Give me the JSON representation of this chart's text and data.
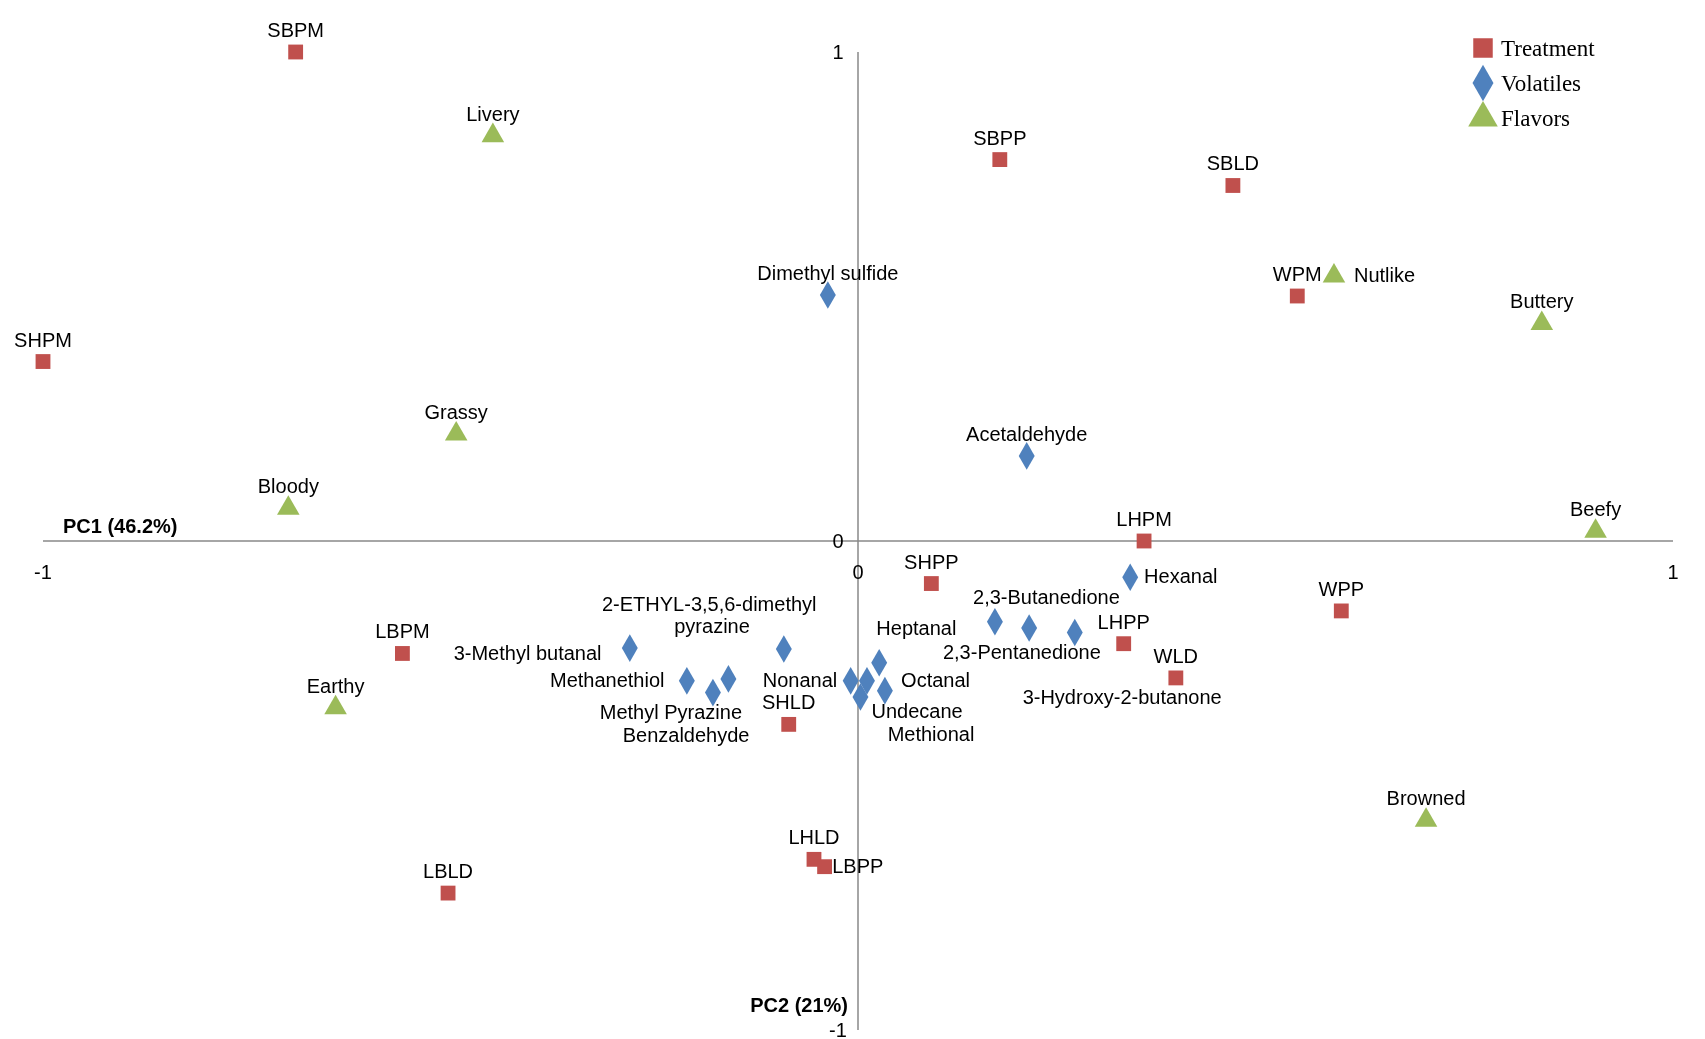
{
  "chart_data": {
    "type": "scatter",
    "xlabel": "PC1 (46.2%)",
    "ylabel": "PC2 (21%)",
    "xlim": [
      -1,
      1
    ],
    "ylim": [
      -1,
      1
    ],
    "xticks": [
      -1,
      0,
      1
    ],
    "yticks": [
      -1,
      0,
      1
    ],
    "grid": false,
    "legend": "top right",
    "series": [
      {
        "name": "Treatment",
        "color": "#c0504d",
        "marker": "square",
        "x": [
          -0.69,
          -1.0,
          0.174,
          0.46,
          0.539,
          0.351,
          0.09,
          0.593,
          0.326,
          0.39,
          -0.559,
          -0.085,
          -0.054,
          -0.041,
          -0.503
        ],
        "values": [
          1.0,
          0.367,
          0.78,
          0.727,
          0.501,
          0,
          -0.087,
          -0.143,
          -0.21,
          -0.28,
          -0.23,
          -0.375,
          -0.651,
          -0.666,
          -0.72
        ]
      },
      {
        "name": "Volatiles",
        "color": "#4f81bd",
        "marker": "diamond",
        "x": [
          -0.037,
          0.207,
          0.334,
          0.168,
          0.266,
          0.21,
          -0.091,
          -0.28,
          -0.159,
          -0.21,
          -0.178,
          0.026,
          0.011,
          -0.009,
          0.033,
          0.003
        ],
        "values": [
          0.503,
          0.174,
          -0.074,
          -0.165,
          -0.187,
          -0.178,
          -0.221,
          -0.219,
          -0.282,
          -0.286,
          -0.31,
          -0.249,
          -0.286,
          -0.286,
          -0.306,
          -0.319
        ]
      },
      {
        "name": "Flavors",
        "color": "#9bbb59",
        "marker": "triangle",
        "x": [
          -0.448,
          -0.493,
          -0.699,
          -0.641,
          0.584,
          0.839,
          0.905,
          0.697
        ],
        "values": [
          0.829,
          0.219,
          0.067,
          -0.341,
          0.542,
          0.445,
          0.02,
          -0.571
        ]
      }
    ],
    "annotations": [
      {
        "text": "SBPM",
        "x": -0.69,
        "y": 1.0
      },
      {
        "text": "SHPM",
        "x": -1.0,
        "y": 0.367
      },
      {
        "text": "SBPP",
        "x": 0.174,
        "y": 0.78
      },
      {
        "text": "SBLD",
        "x": 0.46,
        "y": 0.727
      },
      {
        "text": "WPM",
        "x": 0.539,
        "y": 0.501
      },
      {
        "text": "LHPM",
        "x": 0.351,
        "y": 0
      },
      {
        "text": "SHPP",
        "x": 0.09,
        "y": -0.087
      },
      {
        "text": "WPP",
        "x": 0.593,
        "y": -0.143
      },
      {
        "text": "LHPP",
        "x": 0.326,
        "y": -0.21
      },
      {
        "text": "WLD",
        "x": 0.39,
        "y": -0.28
      },
      {
        "text": "LBPM",
        "x": -0.559,
        "y": -0.23
      },
      {
        "text": "SHLD",
        "x": -0.085,
        "y": -0.375
      },
      {
        "text": "LHLD",
        "x": -0.054,
        "y": -0.651
      },
      {
        "text": "LBPP",
        "x": -0.041,
        "y": -0.666
      },
      {
        "text": "LBLD",
        "x": -0.503,
        "y": -0.72
      },
      {
        "text": "Dimethyl sulfide",
        "x": -0.037,
        "y": 0.503
      },
      {
        "text": "Acetaldehyde",
        "x": 0.207,
        "y": 0.174
      },
      {
        "text": "Hexanal",
        "x": 0.334,
        "y": -0.074
      },
      {
        "text": "2,3-Butanedione",
        "x": 0.168,
        "y": -0.165
      },
      {
        "text": "2,3-Pentanedione",
        "x": 0.266,
        "y": -0.187
      },
      {
        "text": "3-Hydroxy-2-butanone",
        "x": 0.21,
        "y": -0.178
      },
      {
        "text": "2-ETHYL-3,5,6-dimethyl pyrazine",
        "x": -0.091,
        "y": -0.221
      },
      {
        "text": "3-Methyl butanal",
        "x": -0.28,
        "y": -0.219
      },
      {
        "text": "Methyl Pyrazine",
        "x": -0.159,
        "y": -0.282
      },
      {
        "text": "Methanethiol",
        "x": -0.21,
        "y": -0.286
      },
      {
        "text": "Benzaldehyde",
        "x": -0.178,
        "y": -0.31
      },
      {
        "text": "Heptanal",
        "x": 0.026,
        "y": -0.249
      },
      {
        "text": "Octanal",
        "x": 0.011,
        "y": -0.286
      },
      {
        "text": "Nonanal",
        "x": -0.009,
        "y": -0.286
      },
      {
        "text": "Methional",
        "x": 0.033,
        "y": -0.306
      },
      {
        "text": "Undecane",
        "x": 0.003,
        "y": -0.319
      },
      {
        "text": "Livery",
        "x": -0.448,
        "y": 0.829
      },
      {
        "text": "Grassy",
        "x": -0.493,
        "y": 0.219
      },
      {
        "text": "Bloody",
        "x": -0.699,
        "y": 0.067
      },
      {
        "text": "Earthy",
        "x": -0.641,
        "y": -0.341
      },
      {
        "text": "Nutlike",
        "x": 0.584,
        "y": 0.542
      },
      {
        "text": "Buttery",
        "x": 0.839,
        "y": 0.445
      },
      {
        "text": "Beefy",
        "x": 0.905,
        "y": 0.02
      },
      {
        "text": "Browned",
        "x": 0.697,
        "y": -0.571
      }
    ]
  }
}
